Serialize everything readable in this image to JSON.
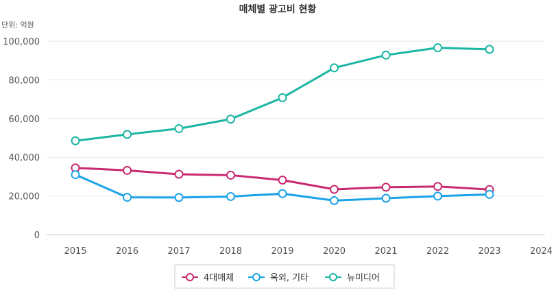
{
  "chart_data": {
    "type": "line",
    "title": "매체별 광고비 현황",
    "unit_label": "단위: 억원",
    "x": [
      "2015",
      "2016",
      "2017",
      "2018",
      "2019",
      "2020",
      "2021",
      "2022",
      "2023",
      "2024"
    ],
    "y_ticks": [
      "0",
      "20,000",
      "40,000",
      "60,000",
      "80,000",
      "100,000"
    ],
    "ylim": [
      0,
      100000
    ],
    "grid": true,
    "legend_position": "bottom",
    "series": [
      {
        "name": "4대매체",
        "color": "#c8286f",
        "values": [
          34500,
          33200,
          31200,
          30700,
          28200,
          23400,
          24500,
          24900,
          23300,
          null
        ]
      },
      {
        "name": "옥외, 기타",
        "color": "#1aa3e8",
        "values": [
          31000,
          19300,
          19200,
          19700,
          21200,
          17600,
          18800,
          19900,
          20800,
          null
        ]
      },
      {
        "name": "뉴미디어",
        "color": "#1ab5a3",
        "values": [
          48500,
          51800,
          54800,
          59700,
          70800,
          86200,
          92800,
          96600,
          95800,
          null
        ]
      }
    ]
  }
}
